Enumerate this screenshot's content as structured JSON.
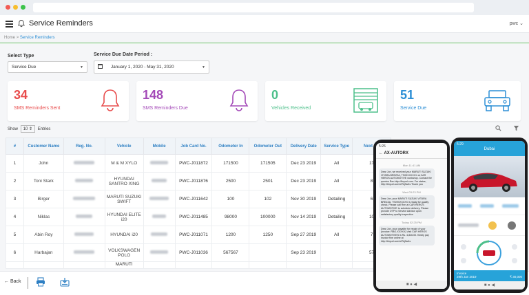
{
  "app": {
    "title": "Service Reminders",
    "user": "pwc",
    "user_caret": "⌄"
  },
  "breadcrumb": {
    "home": "Home",
    "separator": ">",
    "current": "Service Reminders"
  },
  "filters": {
    "select_type_label": "Select Type",
    "select_type_value": "Service Due",
    "period_label": "Service Due Date Period :",
    "period_value": "January 1, 2020 - May 31, 2020"
  },
  "cards": [
    {
      "number": "34",
      "label": "SMS Reminders Sent",
      "color": "#e84c4c",
      "icon": "bell-icon"
    },
    {
      "number": "148",
      "label": "SMS Reminders Due",
      "color": "#a44ab8",
      "icon": "bell-icon"
    },
    {
      "number": "0",
      "label": "Vehicles Received",
      "color": "#4cbf8a",
      "icon": "garage-icon"
    },
    {
      "number": "51",
      "label": "Service Due",
      "color": "#2d8fd5",
      "icon": "jeep-icon"
    }
  ],
  "table_controls": {
    "show": "Show",
    "entries_value": "10",
    "entries_label": "Entries"
  },
  "table": {
    "headers": [
      "#",
      "Customer Name",
      "Reg. No.",
      "Vehicle",
      "Mobile",
      "Job Card No.",
      "Odometer In",
      "Odometer Out",
      "Delivery Date",
      "Service Type",
      "Next Mil"
    ],
    "rows": [
      [
        "1",
        "John",
        "",
        "M & M XYLO",
        "",
        "PWC-J011872",
        "171500",
        "171505",
        "Dec 23 2019",
        "All",
        "17"
      ],
      [
        "2",
        "Toni Stark",
        "",
        "HYUNDAI SANTRO XING",
        "",
        "PWC-J011876",
        "2500",
        "2501",
        "Dec 23 2019",
        "All",
        "8"
      ],
      [
        "3",
        "Birger",
        "",
        "MARUTI SUZUKI SWIFT",
        "",
        "PWC-J011642",
        "100",
        "102",
        "Nov 30 2019",
        "Detailing",
        "6"
      ],
      [
        "4",
        "Niklas",
        "",
        "HYUNDAI ELITE i20",
        "",
        "PWC-J011485",
        "98000",
        "100000",
        "Nov 14 2019",
        "Detailing",
        "10"
      ],
      [
        "5",
        "Abin Roy",
        "",
        "HYUNDAI i20",
        "",
        "PWC-J011071",
        "1200",
        "1250",
        "Sep 27 2019",
        "All",
        "7"
      ],
      [
        "6",
        "Harbajan",
        "",
        "VOLKSWAGEN POLO",
        "",
        "PWC-J011036",
        "567567",
        "",
        "Sep 23 2019",
        "",
        "57"
      ]
    ],
    "partial_row_vehicle": "MARUTI"
  },
  "footer": {
    "back_label": "Back"
  },
  "phone_left": {
    "time": "5:26",
    "sender": "AX-AUTORX",
    "messages": [
      {
        "time": "Mon 11:41 AM",
        "text": "Dear Jon, we received your MARUTI SUZUKI VITARA BREZZA, TS09XXXXXX at CAR HEROS AUTOMOTIVE workshop. Contact the queries Ren http://tinyurl.com. For status, http://tinyurl.com/xf7kj9w4s Thank you"
      },
      {
        "time": "Wed 03:23 PM",
        "text": "Dear Jon, your MARUTI SUZUKI VITARA BREZZA, TS09XXXXXX is ready for quality check. Please call Ren at CAR HEROS AUTOMOTIVE to schedule delivery. Please provide OTP to Service Advisor upon satisfactory quality inspection"
      },
      {
        "time": "Today 02:25 PM",
        "text": "Dear Jon, your payable for repair of your (invoice: RBO-XXXXX) Visit CAR HEROS AUTOMOTIVES is Rs. 4,826.00. Kindly pay invoice fine online at http://tinyurl.com/xf7kj9w4s"
      }
    ]
  },
  "phone_right": {
    "time": "5:29",
    "title": "Dubai",
    "invoice_label": "Invoice",
    "invoice_date": "29th Jan 2019",
    "amount": "₹ 30,000"
  },
  "colors": {
    "accent": "#2d8fd5",
    "header_text": "#2d7fc3",
    "green_line": "#5cb85c"
  }
}
